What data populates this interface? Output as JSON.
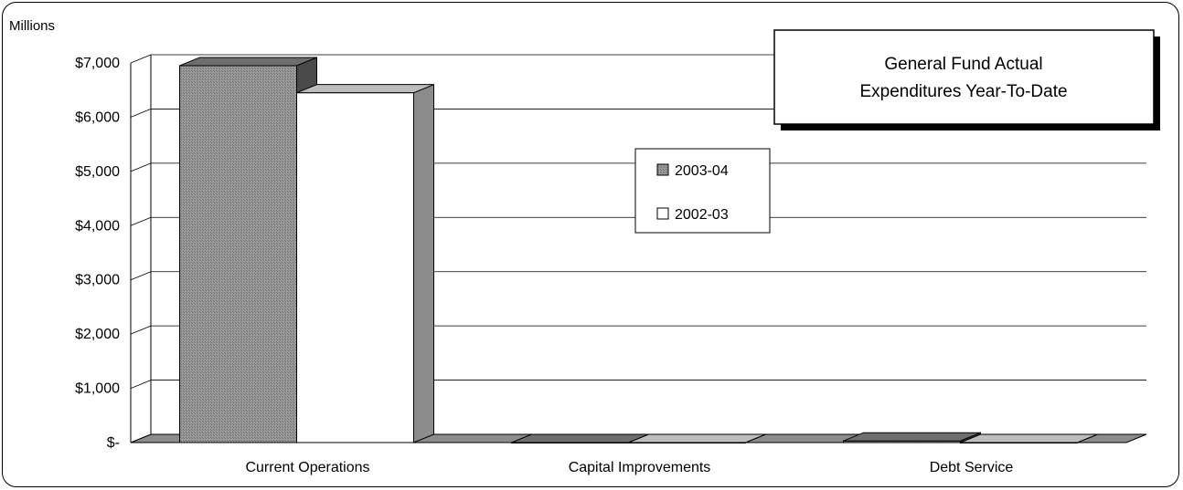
{
  "chart_data": {
    "type": "bar",
    "title": [
      "General Fund Actual",
      "Expenditures Year-To-Date"
    ],
    "unit_label": "Millions",
    "categories": [
      "Current Operations",
      "Capital Improvements",
      "Debt Service"
    ],
    "series": [
      {
        "name": "2003-04",
        "values": [
          6950,
          0,
          30
        ],
        "color": "#8c8c8c"
      },
      {
        "name": "2002-03",
        "values": [
          6450,
          0,
          0
        ],
        "color": "#ffffff"
      }
    ],
    "ylim": [
      0,
      7000
    ],
    "yticks": [
      {
        "value": 7000,
        "label": "$7,000"
      },
      {
        "value": 6000,
        "label": "$6,000"
      },
      {
        "value": 5000,
        "label": "$5,000"
      },
      {
        "value": 4000,
        "label": "$4,000"
      },
      {
        "value": 3000,
        "label": "$3,000"
      },
      {
        "value": 2000,
        "label": "$2,000"
      },
      {
        "value": 1000,
        "label": "$1,000"
      },
      {
        "value": 0,
        "label": "$-"
      }
    ],
    "grid": true,
    "legend_position": "center"
  }
}
